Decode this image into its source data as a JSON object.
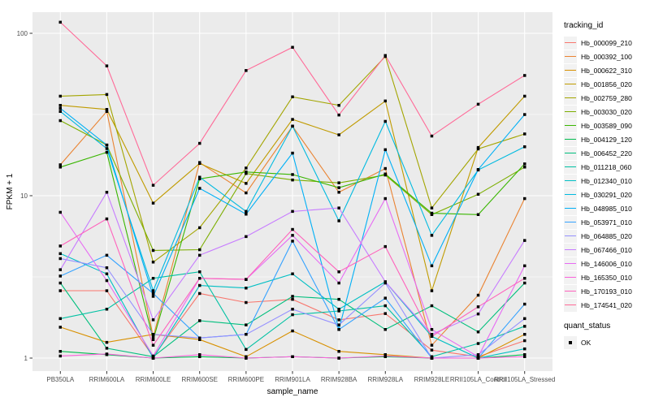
{
  "figure": {
    "y_axis_title": "FPKM + 1",
    "x_axis_title": "sample_name",
    "legend": {
      "tracking_title": "tracking_id",
      "quant_title": "quant_status",
      "quant_label": "OK"
    },
    "colors": {
      "panel_background": "#EBEBEB",
      "gridline": "#FFFFFF",
      "tick_label_text": "#4D4D4D",
      "axis_tick": "#333333",
      "point": "#000000",
      "legend_key_background": "#F2F2F2"
    }
  },
  "chart_data": {
    "type": "line",
    "title": "",
    "xlabel": "sample_name",
    "ylabel": "FPKM + 1",
    "y_scale": "log10",
    "y_ticks": [
      1,
      10,
      100
    ],
    "y_minor_ticks": [
      3.1623,
      31.623
    ],
    "ylim": [
      0.93,
      140
    ],
    "grid": true,
    "legend_position": "right",
    "point_marker": "black-square",
    "quant_status_value": "OK",
    "categories": [
      "PB350LA",
      "RRIM600LA",
      "RRIM600LE",
      "RRIM600SE",
      "RRIM600PE",
      "RRIM901LA",
      "RRIM928BA",
      "RRIM928LA",
      "RRIM928LE",
      "RRII105LA_Control",
      "RRII105LA_Stressed"
    ],
    "series": [
      {
        "name": "Hb_000099_210",
        "color": "#F8766D",
        "values": [
          2.6,
          2.6,
          1.02,
          2.5,
          2.2,
          2.3,
          1.72,
          1.88,
          1.12,
          1.02,
          1.28
        ]
      },
      {
        "name": "Hb_000392_100",
        "color": "#EA8331",
        "values": [
          15.5,
          33,
          1.35,
          16,
          10.4,
          26.8,
          10.5,
          14.7,
          1.2,
          2.44,
          9.6
        ]
      },
      {
        "name": "Hb_000622_310",
        "color": "#D89000",
        "values": [
          1.55,
          1.25,
          1.4,
          1.3,
          1.02,
          1.47,
          1.1,
          1.05,
          1.0,
          1.0,
          1.4
        ]
      },
      {
        "name": "Hb_001856_020",
        "color": "#C09B00",
        "values": [
          36,
          34,
          9.0,
          15.8,
          11.9,
          29.5,
          23.7,
          38.3,
          2.6,
          19.8,
          41
        ]
      },
      {
        "name": "Hb_002759_280",
        "color": "#A3A500",
        "values": [
          41,
          42,
          3.9,
          6.35,
          14.8,
          40.6,
          36,
          72,
          8.4,
          19.4,
          24
        ]
      },
      {
        "name": "Hb_003030_020",
        "color": "#7CAE00",
        "values": [
          29,
          20.5,
          4.6,
          4.65,
          13.7,
          12.5,
          12.0,
          13.4,
          7.65,
          10.2,
          15.0
        ]
      },
      {
        "name": "Hb_003589_090",
        "color": "#39B600",
        "values": [
          15,
          18.5,
          1.3,
          12.7,
          14.0,
          13.5,
          11.2,
          13.6,
          7.8,
          7.65,
          15.7
        ]
      },
      {
        "name": "Hb_004129_120",
        "color": "#00BB4E",
        "values": [
          1.1,
          1.05,
          1.0,
          1.02,
          1.0,
          1.02,
          1.0,
          1.02,
          1.0,
          1.0,
          1.05
        ]
      },
      {
        "name": "Hb_006452_220",
        "color": "#00BF7D",
        "values": [
          2.9,
          1.15,
          1.02,
          1.7,
          1.6,
          2.4,
          2.3,
          1.5,
          2.1,
          1.45,
          2.9
        ]
      },
      {
        "name": "Hb_011218_060",
        "color": "#00C1A3",
        "values": [
          1.75,
          2.0,
          3.1,
          3.4,
          1.13,
          1.85,
          1.95,
          2.1,
          1.02,
          1.23,
          1.57
        ]
      },
      {
        "name": "Hb_012340_010",
        "color": "#00BFC4",
        "values": [
          4.4,
          3.3,
          1.0,
          2.8,
          2.7,
          3.3,
          2.0,
          2.95,
          1.36,
          1.0,
          1.14
        ]
      },
      {
        "name": "Hb_030291_020",
        "color": "#00BAE0",
        "values": [
          33,
          19.5,
          2.6,
          13.0,
          8.0,
          26.8,
          7.0,
          28.7,
          5.7,
          14.4,
          20
        ]
      },
      {
        "name": "Hb_048985_010",
        "color": "#00B0F6",
        "values": [
          34.5,
          20.5,
          2.4,
          11.1,
          7.7,
          18.3,
          1.5,
          19.2,
          3.7,
          14.5,
          31.6
        ]
      },
      {
        "name": "Hb_053971_010",
        "color": "#35A2FF",
        "values": [
          3.2,
          4.3,
          2.5,
          1.33,
          1.4,
          5.25,
          1.5,
          2.34,
          1.0,
          1.0,
          2.15
        ]
      },
      {
        "name": "Hb_064885_020",
        "color": "#9590FF",
        "values": [
          4.1,
          3.6,
          1.4,
          1.33,
          1.4,
          2.0,
          1.6,
          2.9,
          1.0,
          1.05,
          1.75
        ]
      },
      {
        "name": "Hb_067466_010",
        "color": "#C77CFF",
        "values": [
          3.5,
          10.5,
          1.72,
          4.3,
          5.6,
          8.0,
          8.4,
          2.95,
          1.4,
          1.87,
          5.3
        ]
      },
      {
        "name": "Hb_146006_010",
        "color": "#E76BF3",
        "values": [
          7.9,
          3.0,
          1.03,
          3.1,
          3.05,
          5.7,
          2.9,
          9.6,
          1.5,
          1.02,
          3.7
        ]
      },
      {
        "name": "Hb_165350_010",
        "color": "#FA62DB",
        "values": [
          1.03,
          1.06,
          1.0,
          1.05,
          1.0,
          1.02,
          1.0,
          1.03,
          1.0,
          1.0,
          1.02
        ]
      },
      {
        "name": "Hb_170193_010",
        "color": "#FF62BC",
        "values": [
          4.9,
          7.2,
          1.2,
          3.1,
          3.05,
          6.2,
          3.4,
          4.86,
          1.36,
          2.07,
          3.1
        ]
      },
      {
        "name": "Hb_174541_020",
        "color": "#FF6A98",
        "values": [
          117,
          63,
          11.6,
          21,
          59,
          82,
          31.4,
          73,
          23.3,
          36.6,
          55
        ]
      }
    ]
  }
}
